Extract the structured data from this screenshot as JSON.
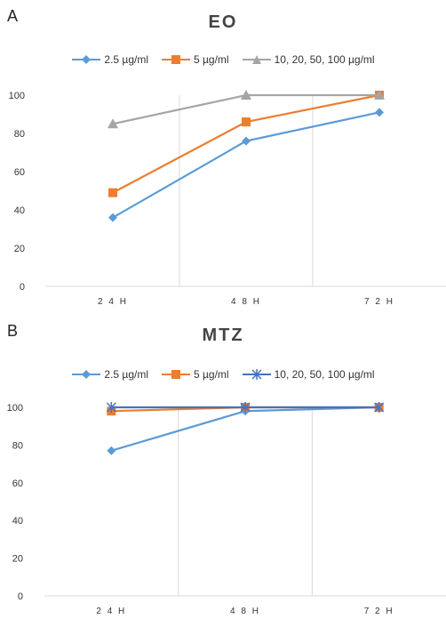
{
  "chart_data": [
    {
      "panel_label": "A",
      "type": "line",
      "title": "EO",
      "categories": [
        "2 4 H",
        "4 8 H",
        "7 2 H"
      ],
      "ylim": [
        0,
        100
      ],
      "yticks": [
        0,
        20,
        40,
        60,
        80,
        100
      ],
      "grid": "vertical",
      "legend_position": "top",
      "series": [
        {
          "name": "2.5 µg/ml",
          "values": [
            36,
            76,
            91
          ],
          "color": "#5b9bd5",
          "marker": "diamond"
        },
        {
          "name": "5 µg/ml",
          "values": [
            49,
            86,
            100
          ],
          "color": "#ed7d31",
          "marker": "square"
        },
        {
          "name": "10, 20, 50, 100 µg/ml",
          "values": [
            85,
            100,
            100
          ],
          "color": "#a5a5a5",
          "marker": "triangle"
        }
      ]
    },
    {
      "panel_label": "B",
      "type": "line",
      "title": "MTZ",
      "categories": [
        "2 4 H",
        "4 8 H",
        "7 2 H"
      ],
      "ylim": [
        0,
        100
      ],
      "yticks": [
        0,
        20,
        40,
        60,
        80,
        100
      ],
      "grid": "vertical",
      "legend_position": "top",
      "series": [
        {
          "name": "2.5 µg/ml",
          "values": [
            77,
            98,
            100
          ],
          "color": "#5b9bd5",
          "marker": "diamond"
        },
        {
          "name": "5 µg/ml",
          "values": [
            98,
            100,
            100
          ],
          "color": "#ed7d31",
          "marker": "square"
        },
        {
          "name": "10, 20, 50, 100 µg/ml",
          "values": [
            100,
            100,
            100
          ],
          "color": "#4472c4",
          "marker": "asterisk"
        }
      ]
    }
  ]
}
